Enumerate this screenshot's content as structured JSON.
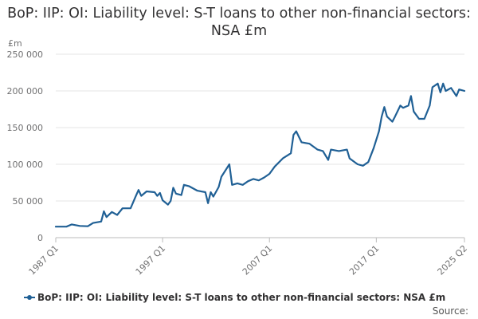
{
  "chart_data": {
    "type": "line",
    "title": "BoP: IIP: OI: Liability level: S-T loans to other non-financial sectors: NSA £m",
    "ylabel": "£m",
    "ylim": [
      0,
      250000
    ],
    "yticks": [
      0,
      50000,
      100000,
      150000,
      200000,
      250000
    ],
    "ytick_labels": [
      "0",
      "50 000",
      "100 000",
      "150 000",
      "200 000",
      "250 000"
    ],
    "xticks": [
      "1987 Q1",
      "1997 Q1",
      "2007 Q1",
      "2017 Q1",
      "2025 Q2"
    ],
    "x_start": "1987 Q1",
    "x_end": "2025 Q2",
    "grid": true,
    "legend_position": "bottom",
    "series": [
      {
        "name": "BoP: IIP: OI: Liability level: S-T loans to other non-financial sectors: NSA £m",
        "color": "#206095",
        "points": [
          [
            "1987 Q1",
            15000
          ],
          [
            "1988 Q1",
            15000
          ],
          [
            "1988 Q3",
            18000
          ],
          [
            "1989 Q2",
            16000
          ],
          [
            "1990 Q1",
            15500
          ],
          [
            "1990 Q3",
            20000
          ],
          [
            "1991 Q2",
            22000
          ],
          [
            "1991 Q3",
            36000
          ],
          [
            "1991 Q4",
            28000
          ],
          [
            "1992 Q2",
            35000
          ],
          [
            "1992 Q4",
            31000
          ],
          [
            "1993 Q2",
            40000
          ],
          [
            "1994 Q1",
            40000
          ],
          [
            "1994 Q3",
            57000
          ],
          [
            "1994 Q4",
            65000
          ],
          [
            "1995 Q1",
            57000
          ],
          [
            "1995 Q3",
            63000
          ],
          [
            "1996 Q2",
            62000
          ],
          [
            "1996 Q3",
            57000
          ],
          [
            "1996 Q4",
            61000
          ],
          [
            "1997 Q1",
            51000
          ],
          [
            "1997 Q3",
            45000
          ],
          [
            "1997 Q4",
            50000
          ],
          [
            "1998 Q1",
            68000
          ],
          [
            "1998 Q2",
            60000
          ],
          [
            "1998 Q4",
            58000
          ],
          [
            "1999 Q1",
            72000
          ],
          [
            "1999 Q3",
            70000
          ],
          [
            "2000 Q2",
            64000
          ],
          [
            "2001 Q1",
            62000
          ],
          [
            "2001 Q2",
            47000
          ],
          [
            "2001 Q3",
            62000
          ],
          [
            "2001 Q4",
            56000
          ],
          [
            "2002 Q2",
            69000
          ],
          [
            "2002 Q3",
            83000
          ],
          [
            "2003 Q2",
            100000
          ],
          [
            "2003 Q3",
            72000
          ],
          [
            "2004 Q1",
            74000
          ],
          [
            "2004 Q3",
            72000
          ],
          [
            "2005 Q1",
            77000
          ],
          [
            "2005 Q3",
            80000
          ],
          [
            "2006 Q1",
            78000
          ],
          [
            "2006 Q3",
            82000
          ],
          [
            "2007 Q1",
            87000
          ],
          [
            "2007 Q3",
            97000
          ],
          [
            "2008 Q2",
            108000
          ],
          [
            "2009 Q1",
            115000
          ],
          [
            "2009 Q2",
            140000
          ],
          [
            "2009 Q3",
            145000
          ],
          [
            "2010 Q1",
            130000
          ],
          [
            "2010 Q4",
            128000
          ],
          [
            "2011 Q3",
            120000
          ],
          [
            "2012 Q1",
            118000
          ],
          [
            "2012 Q3",
            106000
          ],
          [
            "2012 Q4",
            120000
          ],
          [
            "2013 Q3",
            118000
          ],
          [
            "2014 Q2",
            120000
          ],
          [
            "2014 Q3",
            108000
          ],
          [
            "2015 Q2",
            100000
          ],
          [
            "2015 Q4",
            98000
          ],
          [
            "2016 Q2",
            103000
          ],
          [
            "2016 Q4",
            122000
          ],
          [
            "2017 Q2",
            145000
          ],
          [
            "2017 Q3",
            165000
          ],
          [
            "2017 Q4",
            178000
          ],
          [
            "2018 Q1",
            165000
          ],
          [
            "2018 Q3",
            158000
          ],
          [
            "2018 Q4",
            165000
          ],
          [
            "2019 Q2",
            180000
          ],
          [
            "2019 Q3",
            177000
          ],
          [
            "2020 Q1",
            180000
          ],
          [
            "2020 Q2",
            193000
          ],
          [
            "2020 Q3",
            172000
          ],
          [
            "2021 Q1",
            162000
          ],
          [
            "2021 Q3",
            162000
          ],
          [
            "2022 Q1",
            180000
          ],
          [
            "2022 Q2",
            205000
          ],
          [
            "2022 Q4",
            210000
          ],
          [
            "2023 Q1",
            198000
          ],
          [
            "2023 Q2",
            210000
          ],
          [
            "2023 Q3",
            200000
          ],
          [
            "2024 Q1",
            204000
          ],
          [
            "2024 Q3",
            193000
          ],
          [
            "2024 Q4",
            202000
          ],
          [
            "2025 Q2",
            200000
          ]
        ]
      }
    ]
  },
  "legend": {
    "label": "BoP: IIP: OI: Liability level: S-T loans to other non-financial sectors: NSA £m"
  },
  "source": {
    "label": "Source:"
  }
}
